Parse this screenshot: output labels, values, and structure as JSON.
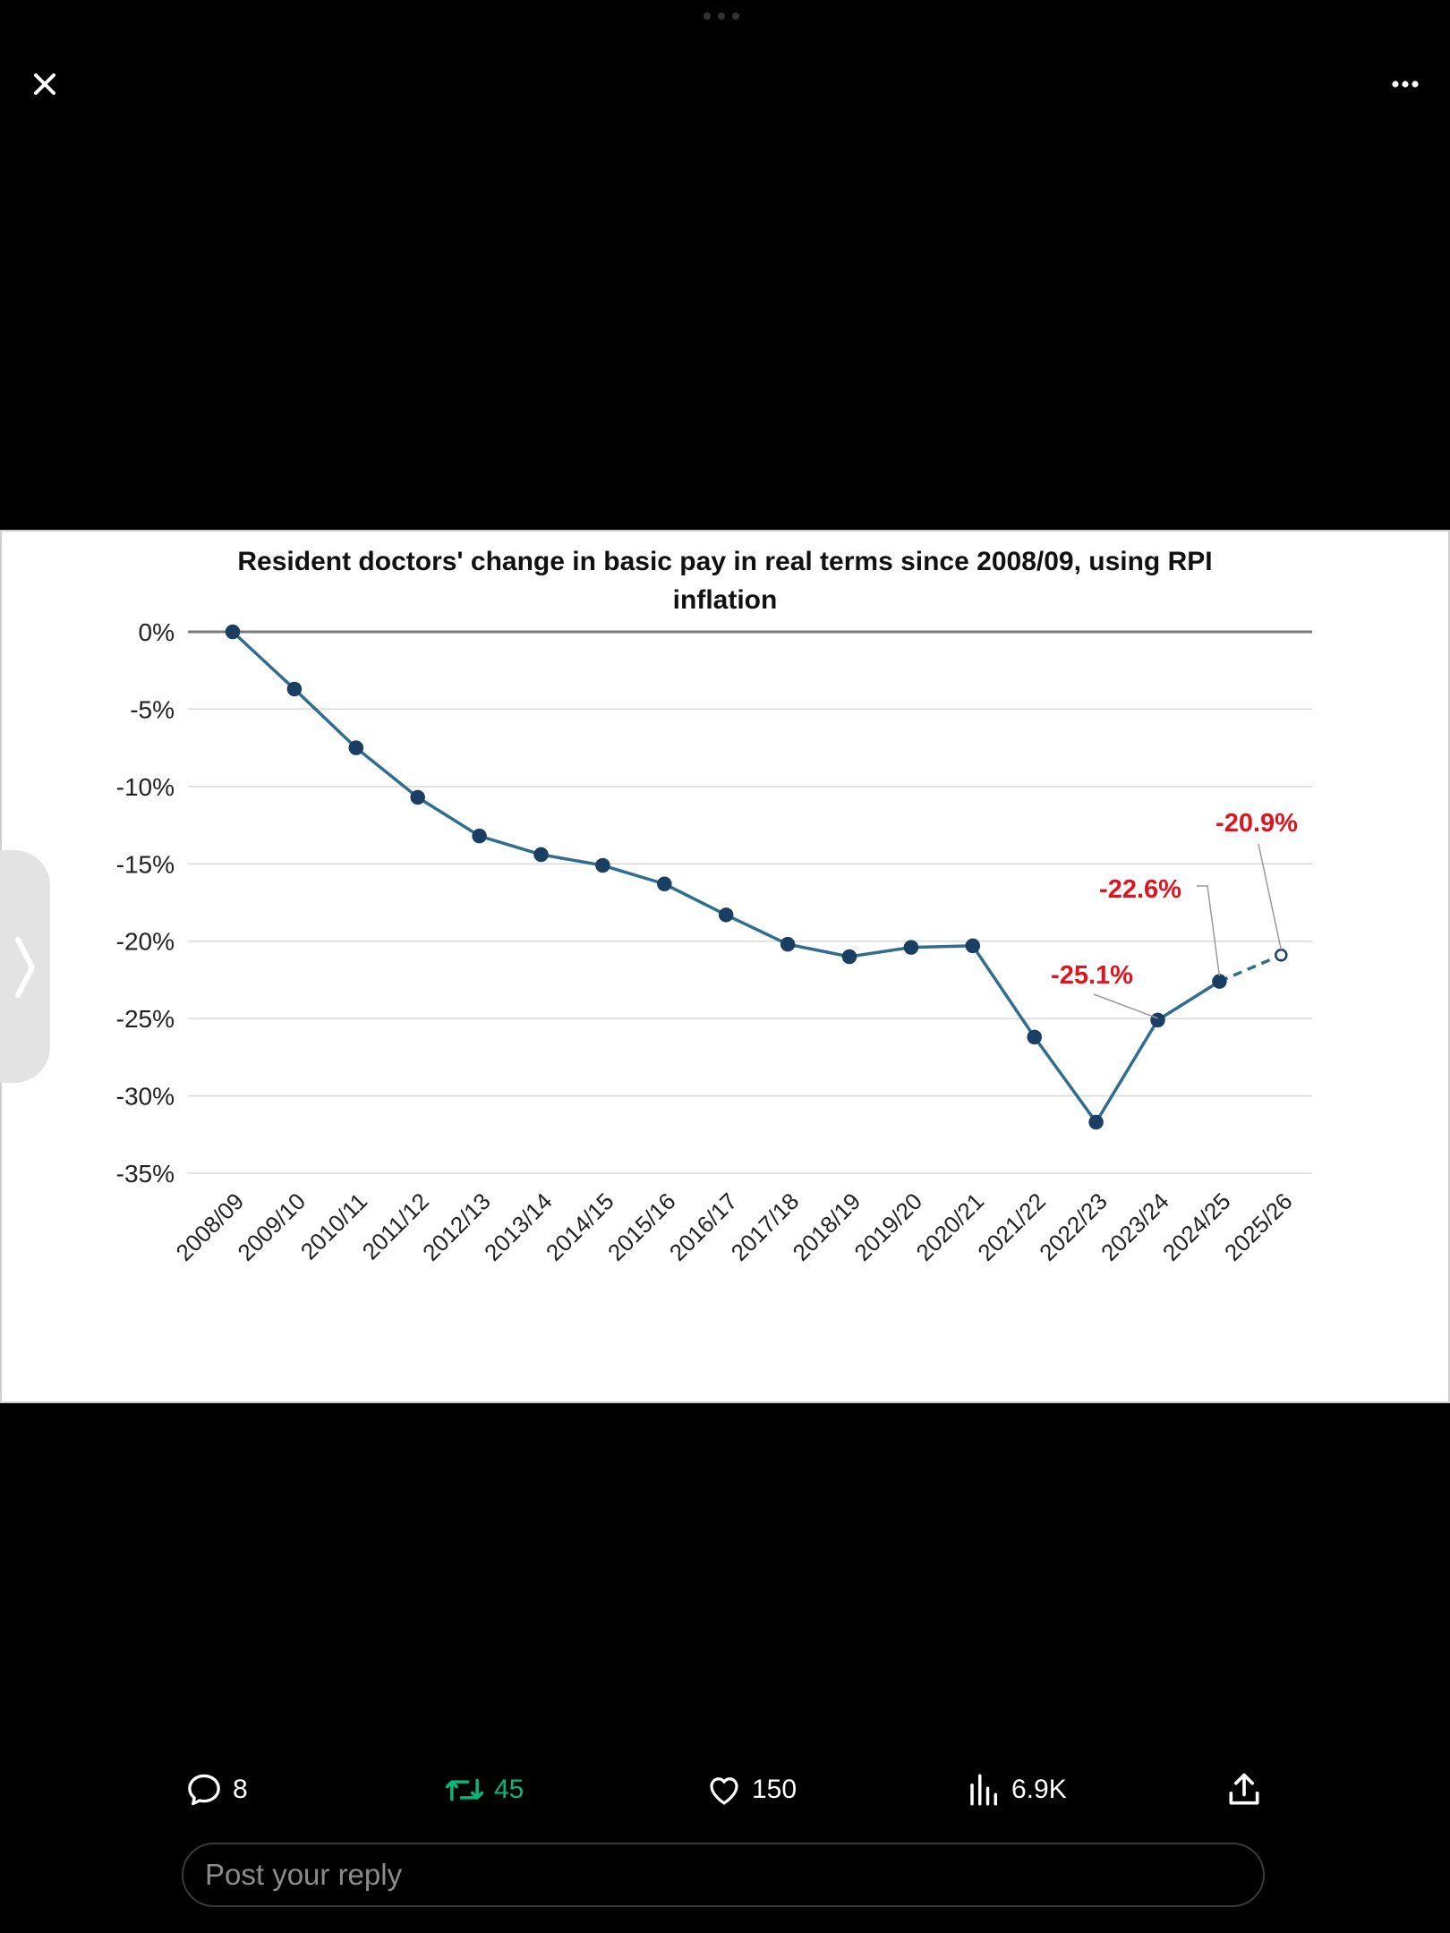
{
  "header": {
    "close_icon": "close-icon",
    "more_icon": "more-horizontal-icon"
  },
  "side_tab": {
    "icon": "chevron-right-icon"
  },
  "chart_data": {
    "type": "line",
    "title": "Resident doctors' change in basic pay in real terms since 2008/09, using RPI inflation",
    "title_lines": [
      "Resident doctors' change in basic pay in real terms since 2008/09, using RPI",
      "inflation"
    ],
    "xlabel": "",
    "ylabel": "",
    "ylim": [
      -35,
      0
    ],
    "y_ticks": [
      0,
      -5,
      -10,
      -15,
      -20,
      -25,
      -30,
      -35
    ],
    "y_tick_labels": [
      "0%",
      "-5%",
      "-10%",
      "-15%",
      "-20%",
      "-25%",
      "-30%",
      "-35%"
    ],
    "categories": [
      "2008/09",
      "2009/10",
      "2010/11",
      "2011/12",
      "2012/13",
      "2013/14",
      "2014/15",
      "2015/16",
      "2016/17",
      "2017/18",
      "2018/19",
      "2019/20",
      "2020/21",
      "2021/22",
      "2022/23",
      "2023/24",
      "2024/25",
      "2025/26"
    ],
    "values": [
      0,
      -3.7,
      -7.5,
      -10.7,
      -13.2,
      -14.4,
      -15.1,
      -16.3,
      -18.3,
      -20.2,
      -21.0,
      -20.4,
      -20.3,
      -26.2,
      -31.7,
      -25.1,
      -22.6,
      -20.9
    ],
    "projected_from_index": 16,
    "projected_marker": "hollow",
    "grid": true,
    "line_color": "#2f6e8f",
    "marker_color": "#1b3f63",
    "zero_line_color": "#7a7a7a",
    "annotation_color": "#e0141e",
    "annotations": [
      {
        "category": "2023/24",
        "value": -25.1,
        "text": "-25.1%"
      },
      {
        "category": "2024/25",
        "value": -22.6,
        "text": "-22.6%"
      },
      {
        "category": "2025/26",
        "value": -20.9,
        "text": "-20.9%"
      }
    ]
  },
  "actions": {
    "reply": {
      "icon": "reply-icon",
      "count": "8"
    },
    "repost": {
      "icon": "repost-icon",
      "count": "45",
      "color": "#00ba7c"
    },
    "like": {
      "icon": "heart-icon",
      "count": "150"
    },
    "views": {
      "icon": "views-icon",
      "count": "6.9K"
    },
    "share": {
      "icon": "share-icon"
    }
  },
  "reply_box": {
    "placeholder": "Post your reply"
  }
}
